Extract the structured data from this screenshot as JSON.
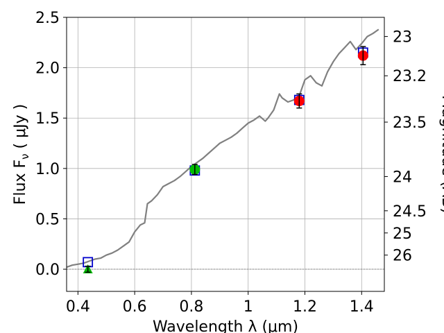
{
  "chart_data": {
    "type": "line",
    "xlabel": "Wavelength  λ (μm)",
    "ylabel": "Flux  F_ν  ( μJy )",
    "ylabel_parts": {
      "prefix": "Flux  F",
      "sub": "ν",
      "suffix": "  ( μJy )"
    },
    "y2label": "Magnitude (AB)",
    "xlim": [
      0.36,
      1.48
    ],
    "ylim": [
      -0.22,
      2.5
    ],
    "x_ticks": [
      {
        "v": 0.4,
        "label": "0.4"
      },
      {
        "v": 0.6,
        "label": "0.6"
      },
      {
        "v": 0.8,
        "label": "0.8"
      },
      {
        "v": 1.0,
        "label": "1"
      },
      {
        "v": 1.2,
        "label": "1.2"
      },
      {
        "v": 1.4,
        "label": "1.4"
      }
    ],
    "y_ticks": [
      {
        "v": 0.0,
        "label": "0.0"
      },
      {
        "v": 0.5,
        "label": "0.5"
      },
      {
        "v": 1.0,
        "label": "1.0"
      },
      {
        "v": 1.5,
        "label": "1.5"
      },
      {
        "v": 2.0,
        "label": "2.0"
      },
      {
        "v": 2.5,
        "label": "2.5"
      }
    ],
    "y2_ticks": [
      {
        "flux": 2.31,
        "label": "23"
      },
      {
        "flux": 1.92,
        "label": "23.2"
      },
      {
        "flux": 1.46,
        "label": "23.5"
      },
      {
        "flux": 0.92,
        "label": "24"
      },
      {
        "flux": 0.58,
        "label": "24.5"
      },
      {
        "flux": 0.36,
        "label": "25"
      },
      {
        "flux": 0.14,
        "label": "26"
      }
    ],
    "grid": true,
    "zero_line": 0.0,
    "sed_model": {
      "color": "#808080",
      "x": [
        0.36,
        0.38,
        0.4,
        0.42,
        0.44,
        0.46,
        0.48,
        0.5,
        0.52,
        0.54,
        0.56,
        0.58,
        0.6,
        0.62,
        0.635,
        0.645,
        0.66,
        0.68,
        0.7,
        0.72,
        0.74,
        0.76,
        0.78,
        0.8,
        0.82,
        0.84,
        0.86,
        0.88,
        0.9,
        0.92,
        0.94,
        0.96,
        0.98,
        1.0,
        1.02,
        1.04,
        1.06,
        1.07,
        1.09,
        1.11,
        1.12,
        1.14,
        1.16,
        1.18,
        1.2,
        1.22,
        1.24,
        1.26,
        1.28,
        1.3,
        1.32,
        1.34,
        1.36,
        1.38,
        1.4,
        1.42,
        1.44,
        1.46
      ],
      "y": [
        0.02,
        0.04,
        0.05,
        0.06,
        0.08,
        0.1,
        0.11,
        0.14,
        0.16,
        0.19,
        0.23,
        0.27,
        0.37,
        0.44,
        0.46,
        0.65,
        0.68,
        0.74,
        0.82,
        0.85,
        0.88,
        0.92,
        0.97,
        1.02,
        1.06,
        1.1,
        1.15,
        1.2,
        1.25,
        1.28,
        1.31,
        1.35,
        1.4,
        1.45,
        1.48,
        1.52,
        1.47,
        1.5,
        1.58,
        1.74,
        1.7,
        1.66,
        1.68,
        1.72,
        1.88,
        1.92,
        1.85,
        1.82,
        1.96,
        2.06,
        2.14,
        2.2,
        2.26,
        2.18,
        2.24,
        2.31,
        2.34,
        2.38
      ]
    },
    "series": [
      {
        "marker": "open-square",
        "color": "#0000cc",
        "points": [
          {
            "x": 0.435,
            "y": 0.07
          },
          {
            "x": 0.812,
            "y": 0.98
          },
          {
            "x": 1.18,
            "y": 1.68
          },
          {
            "x": 1.405,
            "y": 2.15
          }
        ]
      },
      {
        "marker": "filled-circle",
        "color": "#ff0000",
        "points": [
          {
            "x": 1.18,
            "y": 1.67,
            "err": 0.07
          },
          {
            "x": 1.405,
            "y": 2.12,
            "err": 0.09
          }
        ]
      },
      {
        "marker": "filled-circle",
        "color": "#00bb00",
        "points": [
          {
            "x": 0.812,
            "y": 0.99,
            "err": 0.05
          }
        ]
      },
      {
        "marker": "filled-triangle",
        "color": "#00bb00",
        "points": [
          {
            "x": 0.435,
            "y": 0.0,
            "err": 0.03
          }
        ]
      }
    ]
  }
}
